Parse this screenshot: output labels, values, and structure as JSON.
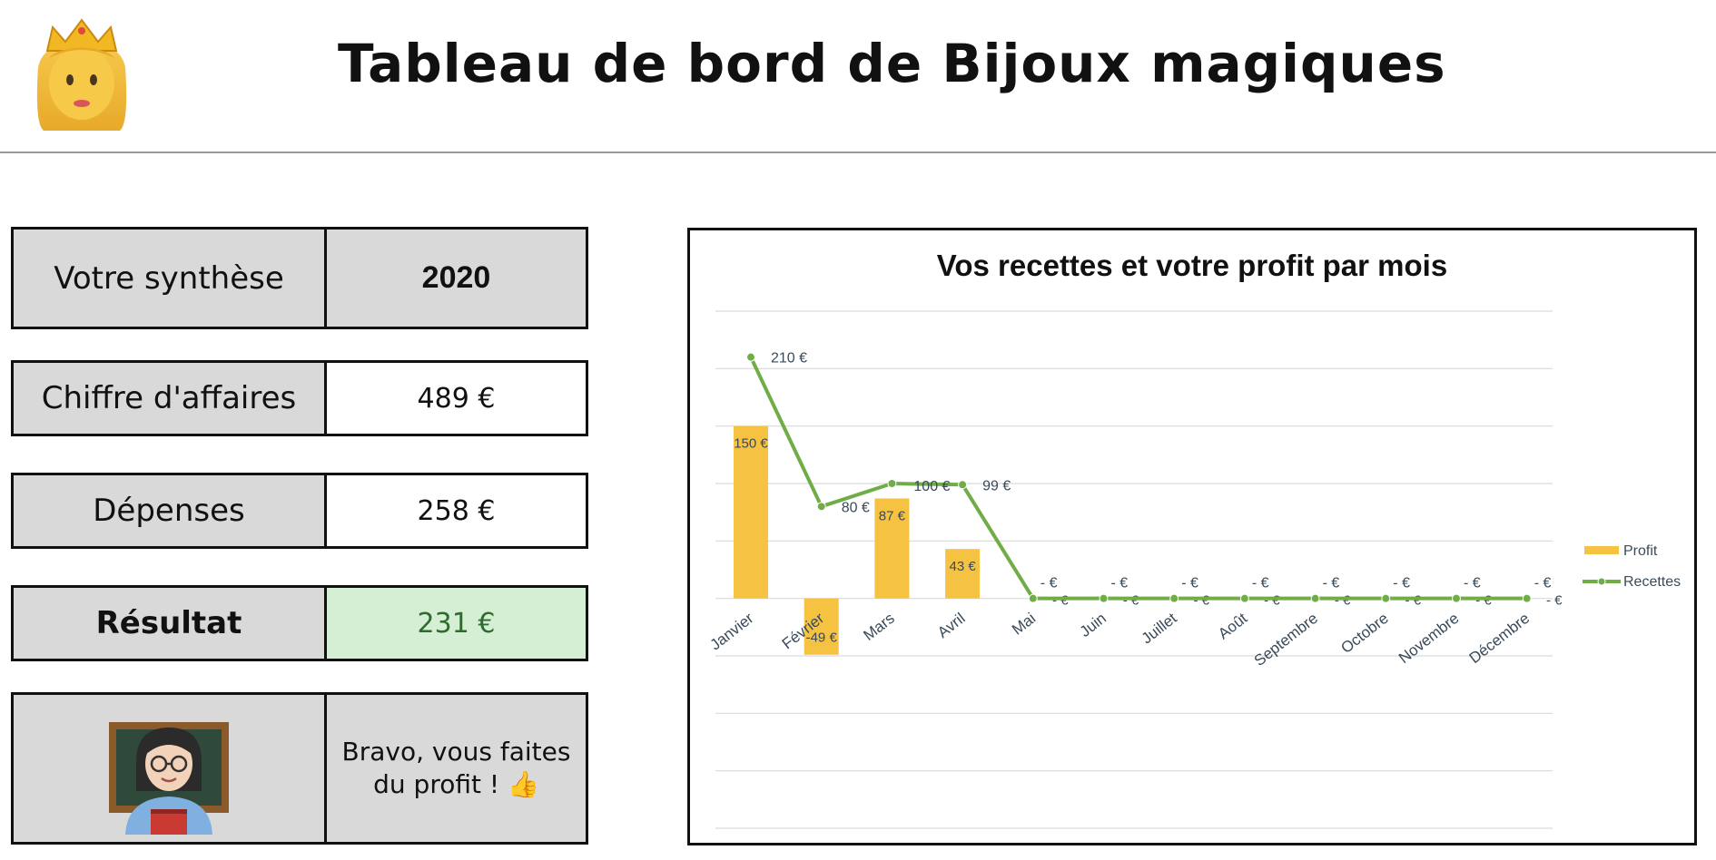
{
  "header": {
    "title": "Tableau de bord de Bijoux magiques",
    "logo_icon": "princess-emoji-icon"
  },
  "summary": {
    "synthese_label": "Votre synthèse",
    "year": "2020",
    "ca_label": "Chiffre d'affaires",
    "ca_value": "489 €",
    "depenses_label": "Dépenses",
    "depenses_value": "258 €",
    "resultat_label": "Résultat",
    "resultat_value": "231 €",
    "resultat_color": "#2f6b2f",
    "resultat_bg": "#d4efd4",
    "message_line1": "Bravo, vous faites",
    "message_line2": "du profit ! 👍",
    "teacher_icon": "teacher-emoji-icon"
  },
  "chart_data": {
    "type": "bar",
    "title": "Vos recettes et votre profit par mois",
    "categories": [
      "Janvier",
      "Février",
      "Mars",
      "Avril",
      "Mai",
      "Juin",
      "Juillet",
      "Août",
      "Septembre",
      "Octobre",
      "Novembre",
      "Décembre"
    ],
    "series": [
      {
        "name": "Profit",
        "type": "bar",
        "color": "#f5c242",
        "values": [
          150,
          -49,
          87,
          43,
          0,
          0,
          0,
          0,
          0,
          0,
          0,
          0
        ],
        "labels": [
          "150 €",
          "-49 €",
          "87 €",
          "43 €",
          "- €",
          "- €",
          "- €",
          "- €",
          "- €",
          "- €",
          "- €",
          "- €"
        ]
      },
      {
        "name": "Recettes",
        "type": "line",
        "color": "#70ad47",
        "values": [
          210,
          80,
          100,
          99,
          0,
          0,
          0,
          0,
          0,
          0,
          0,
          0
        ],
        "labels": [
          "210 €",
          "80 €",
          "100 €",
          "99 €",
          "- €",
          "- €",
          "- €",
          "- €",
          "- €",
          "- €",
          "- €",
          "- €"
        ]
      }
    ],
    "ylim": [
      -200,
      250
    ],
    "grid": true,
    "legend": "right"
  }
}
